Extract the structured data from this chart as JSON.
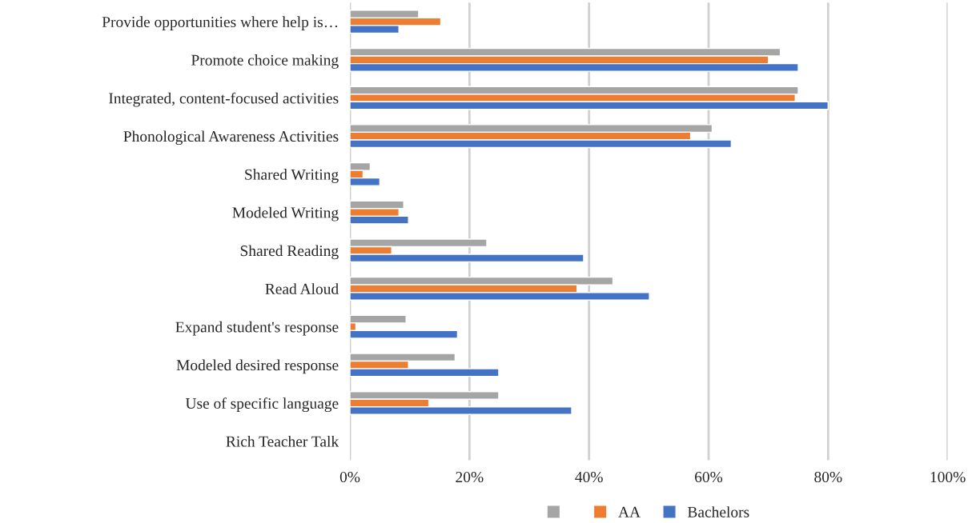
{
  "chart_data": {
    "type": "bar",
    "orientation": "horizontal",
    "categories": [
      "Provide opportunities where help is…",
      "Promote choice making",
      "Integrated, content-focused activities",
      "Phonological Awareness Activities",
      "Shared Writing",
      "Modeled Writing",
      "Shared Reading",
      "Read Aloud",
      "Expand student's response",
      "Modeled desired response",
      "Use of specific language",
      "Rich Teacher Talk"
    ],
    "series": [
      {
        "color": "#a5a5a5",
        "values": [
          0.115,
          0.72,
          0.75,
          0.606,
          0.034,
          0.09,
          0.229,
          0.44,
          0.094,
          0.176,
          0.249,
          null
        ]
      },
      {
        "name": "AA",
        "color": "#ed7d31",
        "values": [
          0.152,
          0.7,
          0.745,
          0.57,
          0.022,
          0.082,
          0.07,
          0.38,
          0.01,
          0.098,
          0.132,
          null
        ]
      },
      {
        "name": "Bachelors",
        "color": "#4472c4",
        "values": [
          0.082,
          0.75,
          0.8,
          0.638,
          0.05,
          0.098,
          0.391,
          0.501,
          0.18,
          0.249,
          0.371,
          null
        ]
      }
    ],
    "xlim": [
      0,
      1
    ],
    "xticks": [
      {
        "value": 0,
        "label": "0%"
      },
      {
        "value": 0.2,
        "label": "20%"
      },
      {
        "value": 0.4,
        "label": "40%"
      },
      {
        "value": 0.6,
        "label": "60%"
      },
      {
        "value": 0.8,
        "label": "80%"
      },
      {
        "value": 1,
        "label": "100%"
      }
    ],
    "grid": "x",
    "legend": "bottom"
  }
}
